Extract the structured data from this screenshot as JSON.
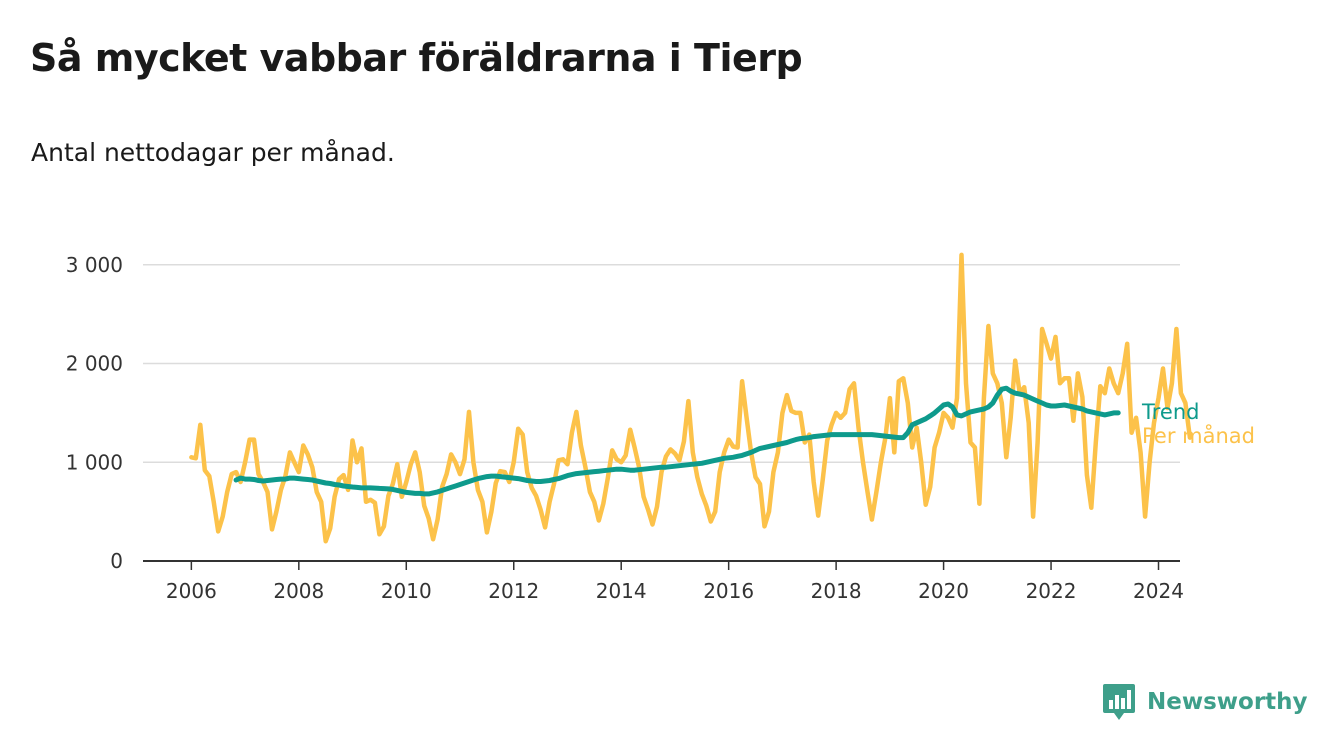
{
  "title": "Så mycket vabbar föräldrarna i Tierp",
  "subtitle": "Antal nettodagar per månad.",
  "brand": {
    "name": "Newsworthy",
    "icon": "bar-chart-logo-icon"
  },
  "colors": {
    "trend": "#0e9a8c",
    "monthly": "#fcc24a",
    "grid": "#dcdcdc",
    "axis": "#333333",
    "brand": "#3e9f8a"
  },
  "chart_data": {
    "type": "line",
    "title": "Så mycket vabbar föräldrarna i Tierp",
    "subtitle": "Antal nettodagar per månad.",
    "xlabel": "",
    "ylabel": "",
    "x_ticks": [
      2006,
      2008,
      2010,
      2012,
      2014,
      2016,
      2018,
      2020,
      2022,
      2024
    ],
    "x_tick_labels": [
      "2006",
      "2008",
      "2010",
      "2012",
      "2014",
      "2016",
      "2018",
      "2020",
      "2022",
      "2024"
    ],
    "y_ticks": [
      0,
      1000,
      2000,
      3000
    ],
    "y_tick_labels": [
      "0",
      "1 000",
      "2 000",
      "3 000"
    ],
    "xlim": [
      2005.1,
      2024.4
    ],
    "ylim": [
      0,
      3150
    ],
    "grid": true,
    "legend_position": "right, at line ends",
    "series": [
      {
        "name": "Trend",
        "start": [
          2006,
          11
        ],
        "values": [
          820,
          840,
          830,
          830,
          825,
          815,
          810,
          815,
          820,
          825,
          830,
          830,
          840,
          840,
          835,
          830,
          825,
          820,
          810,
          800,
          790,
          785,
          775,
          770,
          760,
          755,
          750,
          745,
          740,
          740,
          740,
          738,
          735,
          733,
          730,
          725,
          715,
          705,
          695,
          690,
          685,
          685,
          680,
          680,
          690,
          700,
          715,
          730,
          745,
          760,
          775,
          790,
          805,
          820,
          835,
          845,
          855,
          860,
          860,
          855,
          850,
          845,
          840,
          835,
          825,
          815,
          810,
          805,
          805,
          810,
          815,
          825,
          835,
          850,
          865,
          875,
          885,
          890,
          895,
          900,
          905,
          910,
          915,
          920,
          925,
          930,
          930,
          925,
          920,
          920,
          925,
          930,
          935,
          940,
          945,
          950,
          950,
          955,
          960,
          965,
          970,
          975,
          980,
          985,
          990,
          1000,
          1010,
          1020,
          1030,
          1040,
          1045,
          1050,
          1060,
          1070,
          1085,
          1100,
          1120,
          1140,
          1150,
          1160,
          1170,
          1180,
          1190,
          1200,
          1215,
          1230,
          1240,
          1245,
          1250,
          1260,
          1265,
          1270,
          1275,
          1280,
          1280,
          1280,
          1280,
          1280,
          1280,
          1280,
          1280,
          1280,
          1280,
          1275,
          1270,
          1265,
          1260,
          1255,
          1250,
          1250,
          1300,
          1380,
          1400,
          1420,
          1440,
          1470,
          1500,
          1540,
          1580,
          1590,
          1560,
          1480,
          1470,
          1490,
          1510,
          1520,
          1530,
          1540,
          1560,
          1600,
          1680,
          1740,
          1750,
          1720,
          1700,
          1690,
          1680,
          1660,
          1640,
          1620,
          1600,
          1580,
          1570,
          1570,
          1575,
          1580,
          1570,
          1560,
          1550,
          1540,
          1520,
          1510,
          1500,
          1490,
          1480,
          1490,
          1500,
          1500
        ]
      },
      {
        "name": "Per månad",
        "start": [
          2006,
          1
        ],
        "values": [
          1050,
          1040,
          1380,
          920,
          860,
          600,
          300,
          450,
          700,
          880,
          900,
          800,
          1000,
          1230,
          1230,
          880,
          800,
          700,
          320,
          500,
          720,
          860,
          1100,
          1000,
          900,
          1170,
          1080,
          950,
          700,
          600,
          200,
          330,
          650,
          830,
          870,
          720,
          1220,
          1000,
          1140,
          600,
          620,
          590,
          270,
          350,
          660,
          780,
          980,
          650,
          800,
          980,
          1100,
          900,
          560,
          430,
          220,
          420,
          750,
          880,
          1080,
          1000,
          880,
          1030,
          1510,
          1000,
          720,
          600,
          290,
          500,
          790,
          910,
          900,
          800,
          1000,
          1340,
          1280,
          900,
          740,
          660,
          520,
          340,
          600,
          780,
          1020,
          1030,
          980,
          1300,
          1510,
          1170,
          950,
          700,
          600,
          410,
          580,
          840,
          1120,
          1030,
          1000,
          1070,
          1330,
          1150,
          950,
          650,
          520,
          370,
          550,
          900,
          1060,
          1130,
          1090,
          1020,
          1210,
          1620,
          1100,
          850,
          680,
          560,
          400,
          500,
          900,
          1100,
          1230,
          1160,
          1150,
          1820,
          1450,
          1100,
          850,
          780,
          350,
          500,
          900,
          1100,
          1500,
          1680,
          1520,
          1500,
          1500,
          1200,
          1280,
          800,
          460,
          820,
          1220,
          1380,
          1500,
          1450,
          1500,
          1740,
          1800,
          1350,
          1000,
          700,
          420,
          700,
          1000,
          1250,
          1650,
          1100,
          1820,
          1850,
          1600,
          1150,
          1350,
          1000,
          570,
          750,
          1150,
          1300,
          1500,
          1450,
          1350,
          1650,
          3100,
          1800,
          1200,
          1150,
          580,
          1650,
          2380,
          1900,
          1800,
          1600,
          1050,
          1450,
          2030,
          1700,
          1760,
          1400,
          450,
          1200,
          2350,
          2200,
          2050,
          2270,
          1800,
          1850,
          1850,
          1420,
          1900,
          1660,
          870,
          540,
          1200,
          1770,
          1700,
          1950,
          1800,
          1700,
          1900,
          2200,
          1300,
          1450,
          1100,
          450,
          1000,
          1400,
          1650,
          1950,
          1550,
          1800,
          2350,
          1700,
          1600,
          1250
        ]
      }
    ]
  }
}
